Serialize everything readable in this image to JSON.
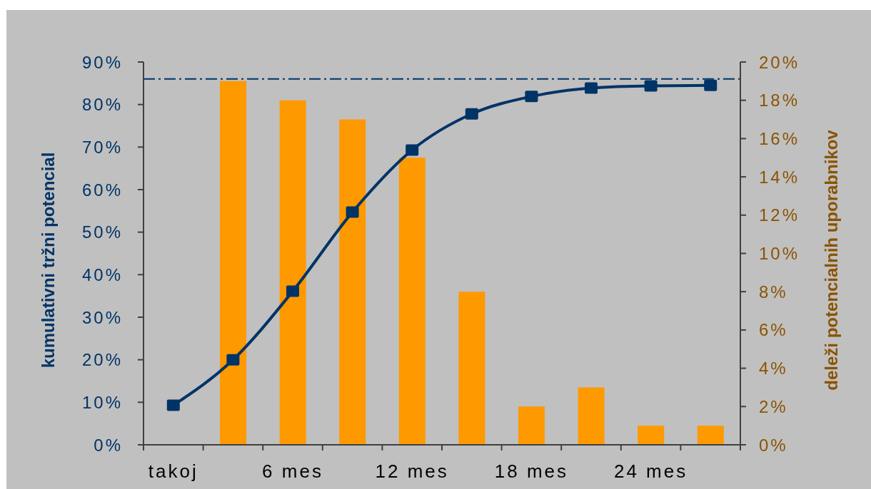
{
  "chart_data": {
    "type": "bar",
    "categories": [
      "takoj",
      null,
      "6 mes",
      null,
      "12 mes",
      null,
      "18 mes",
      null,
      "24 mes",
      null
    ],
    "series": [
      {
        "axis": "y2",
        "color": "#ff9900",
        "values": [
          null,
          19,
          18,
          17,
          15,
          8,
          2,
          3,
          1,
          1
        ]
      },
      {
        "type": "line",
        "axis": "y",
        "color": "#003366",
        "marker": "square",
        "line_style": "solid",
        "values": [
          9.3,
          20,
          36.1,
          54.7,
          69.3,
          77.8,
          81.9,
          83.9,
          84.4,
          84.5
        ]
      }
    ],
    "ylabel": "kumulativni tržni potencial",
    "y2label": "deleži potencialnih uporabnikov",
    "ylim": [
      0,
      90
    ],
    "yticks": [
      {
        "value": 0,
        "label": "0%"
      },
      {
        "value": 10,
        "label": "10%"
      },
      {
        "value": 20,
        "label": "20%"
      },
      {
        "value": 30,
        "label": "30%"
      },
      {
        "value": 40,
        "label": "40%"
      },
      {
        "value": 50,
        "label": "50%"
      },
      {
        "value": 60,
        "label": "60%"
      },
      {
        "value": 70,
        "label": "70%"
      },
      {
        "value": 80,
        "label": "80%"
      },
      {
        "value": 90,
        "label": "90%"
      }
    ],
    "y2lim": [
      0,
      20
    ],
    "y2ticks": [
      {
        "value": 0,
        "label": "0%"
      },
      {
        "value": 2,
        "label": "2%"
      },
      {
        "value": 4,
        "label": "4%"
      },
      {
        "value": 6,
        "label": "6%"
      },
      {
        "value": 8,
        "label": "8%"
      },
      {
        "value": 10,
        "label": "10%"
      },
      {
        "value": 12,
        "label": "12%"
      },
      {
        "value": 14,
        "label": "14%"
      },
      {
        "value": 16,
        "label": "16%"
      },
      {
        "value": 18,
        "label": "18%"
      },
      {
        "value": 20,
        "label": "20%"
      }
    ],
    "ref_lines": [
      {
        "axis": "y",
        "value": 86,
        "color": "#003366",
        "line_style": "dashdot"
      }
    ]
  }
}
